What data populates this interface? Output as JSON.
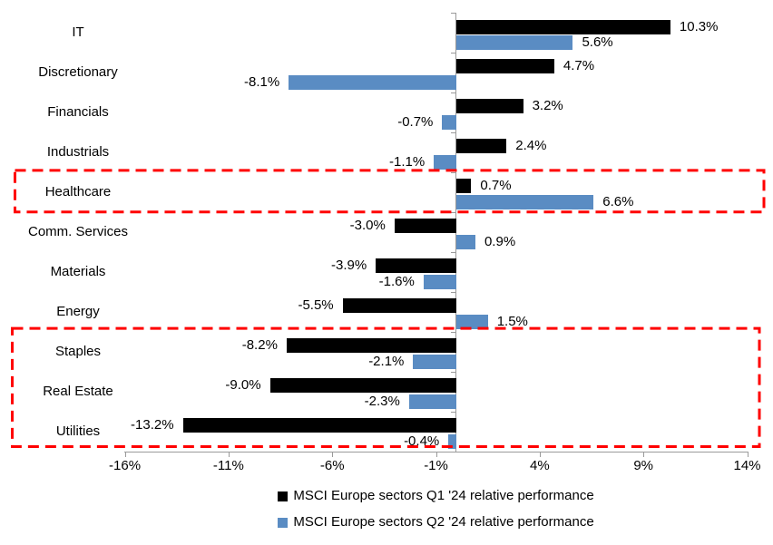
{
  "chart_data": {
    "type": "bar",
    "orientation": "horizontal",
    "title": "",
    "categories": [
      "IT",
      "Discretionary",
      "Financials",
      "Industrials",
      "Healthcare",
      "Comm. Services",
      "Materials",
      "Energy",
      "Staples",
      "Real Estate",
      "Utilities"
    ],
    "series": [
      {
        "name": "MSCI Europe sectors Q1 '24 relative performance",
        "color": "#000000",
        "values": [
          10.3,
          4.7,
          3.2,
          2.4,
          0.7,
          -3.0,
          -3.9,
          -5.5,
          -8.2,
          -9.0,
          -13.2
        ],
        "labels": [
          "10.3%",
          "4.7%",
          "3.2%",
          "2.4%",
          "0.7%",
          "-3.0%",
          "-3.9%",
          "-5.5%",
          "-8.2%",
          "-9.0%",
          "-13.2%"
        ]
      },
      {
        "name": "MSCI Europe sectors Q2 '24 relative performance",
        "color": "#5A8CC3",
        "values": [
          5.6,
          -8.1,
          -0.7,
          -1.1,
          6.6,
          0.9,
          -1.6,
          1.5,
          -2.1,
          -2.3,
          -0.4
        ],
        "labels": [
          "5.6%",
          "-8.1%",
          "-0.7%",
          "-1.1%",
          "6.6%",
          "0.9%",
          "-1.6%",
          "1.5%",
          "-2.1%",
          "-2.3%",
          "-0.4%"
        ]
      }
    ],
    "x_axis": {
      "range": [
        -16,
        14
      ],
      "ticks": [
        {
          "value": -16,
          "label": "-16%"
        },
        {
          "value": -11,
          "label": "-11%"
        },
        {
          "value": -6,
          "label": "-6%"
        },
        {
          "value": -1,
          "label": "-1%"
        },
        {
          "value": 4,
          "label": "4%"
        },
        {
          "value": 9,
          "label": "9%"
        },
        {
          "value": 14,
          "label": "14%"
        }
      ]
    },
    "grid": false,
    "legend_position": "bottom-center",
    "axis_color": "#9A9A9A",
    "text_color": "#000000",
    "highlight_color": "#FF0000",
    "highlights": [
      {
        "name": "healthcare-highlight",
        "categories": [
          "Healthcare"
        ]
      },
      {
        "name": "defensives-highlight",
        "categories": [
          "Staples",
          "Real Estate",
          "Utilities"
        ]
      }
    ]
  }
}
